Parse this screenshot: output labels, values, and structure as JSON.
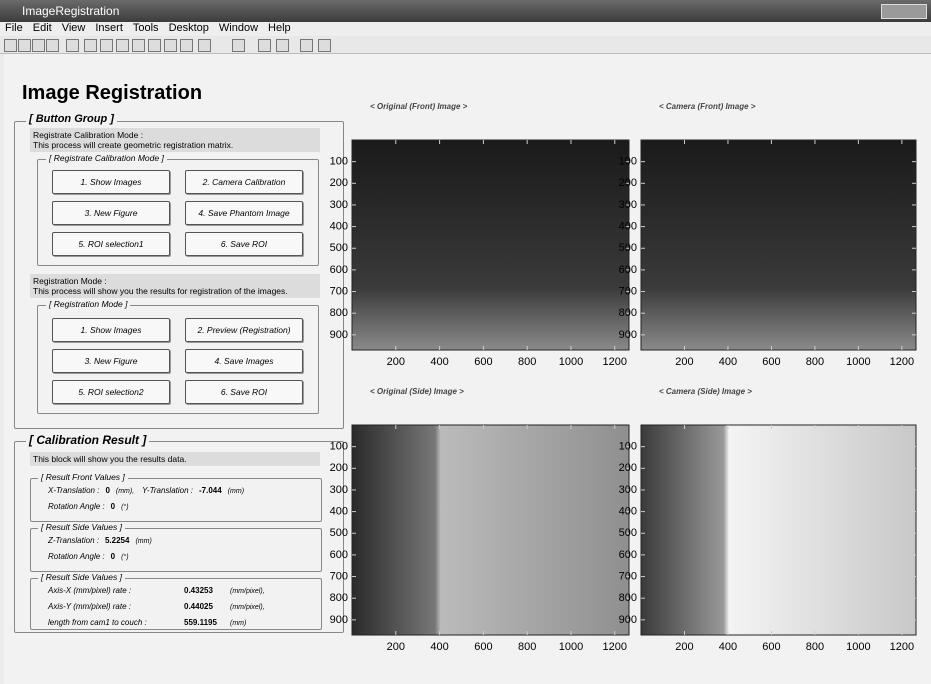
{
  "window": {
    "title": "ImageRegistration"
  },
  "menu": [
    "File",
    "Edit",
    "View",
    "Insert",
    "Tools",
    "Desktop",
    "Window",
    "Help"
  ],
  "heading": "Image Registration",
  "button_group": {
    "title": "[ Button Group ]",
    "calibration": {
      "label": "Registrate Calibration Mode :",
      "description": "This process will create geometric registration matrix.",
      "panel_title": "[ Registrate Calibration Mode ]",
      "buttons": [
        "1. Show Images",
        "2. Camera Calibration",
        "3. New Figure",
        "4. Save Phantom Image",
        "5. ROI selection1",
        "6. Save ROI"
      ]
    },
    "registration": {
      "label": "Registration Mode :",
      "description": "This process will show you the results for registration of the images.",
      "panel_title": "[ Registration Mode ]",
      "buttons": [
        "1. Show Images",
        "2. Preview (Registration)",
        "3. New Figure",
        "4. Save Images",
        "5. ROI selection2",
        "6. Save ROI"
      ]
    }
  },
  "calibration_result": {
    "title": "[ Calibration Result ]",
    "description": "This block will show you the results data.",
    "front": {
      "title": "[ Result Front Values ]",
      "rows": [
        [
          {
            "label": "X-Translation :",
            "value": 0,
            "unit": "(mm),"
          },
          {
            "label": "Y-Translation :",
            "value": -7.044,
            "unit": "(mm)"
          }
        ],
        [
          {
            "label": "Rotation Angle :",
            "value": 0,
            "unit": "(°)"
          }
        ]
      ]
    },
    "side": {
      "title": "[ Result Side Values ]",
      "rows": [
        [
          {
            "label": "Z-Translation :",
            "value": 5.2254,
            "unit": "(mm)"
          }
        ],
        [
          {
            "label": "Rotation Angle :",
            "value": 0,
            "unit": "(°)"
          }
        ]
      ]
    },
    "rates": {
      "title": "[ Result Side Values ]",
      "rows": [
        [
          {
            "label": "Axis-X (mm/pixel) rate :",
            "value": 0.43253,
            "unit": "(mm/pixel),"
          }
        ],
        [
          {
            "label": "Axis-Y (mm/pixel) rate :",
            "value": 0.44025,
            "unit": "(mm/pixel),"
          }
        ],
        [
          {
            "label": "length from cam1 to couch :",
            "value": 559.1195,
            "unit": "(mm)"
          }
        ]
      ]
    }
  },
  "axes": [
    {
      "title": "< Original (Front) Image >",
      "xlim": [
        0,
        1265
      ],
      "ylim": [
        0,
        970
      ],
      "xticks": [
        200,
        400,
        600,
        800,
        1000,
        1200
      ],
      "yticks": [
        100,
        200,
        300,
        400,
        500,
        600,
        700,
        800,
        900
      ]
    },
    {
      "title": "< Camera (Front) Image >",
      "xlim": [
        0,
        1265
      ],
      "ylim": [
        0,
        970
      ],
      "xticks": [
        200,
        400,
        600,
        800,
        1000,
        1200
      ],
      "yticks": [
        100,
        200,
        300,
        400,
        500,
        600,
        700,
        800,
        900
      ]
    },
    {
      "title": "< Original (Side) Image >",
      "xlim": [
        0,
        1265
      ],
      "ylim": [
        0,
        970
      ],
      "xticks": [
        200,
        400,
        600,
        800,
        1000,
        1200
      ],
      "yticks": [
        100,
        200,
        300,
        400,
        500,
        600,
        700,
        800,
        900
      ]
    },
    {
      "title": "< Camera (Side) Image >",
      "xlim": [
        0,
        1265
      ],
      "ylim": [
        0,
        970
      ],
      "xticks": [
        200,
        400,
        600,
        800,
        1000,
        1200
      ],
      "yticks": [
        100,
        200,
        300,
        400,
        500,
        600,
        700,
        800,
        900
      ]
    }
  ]
}
